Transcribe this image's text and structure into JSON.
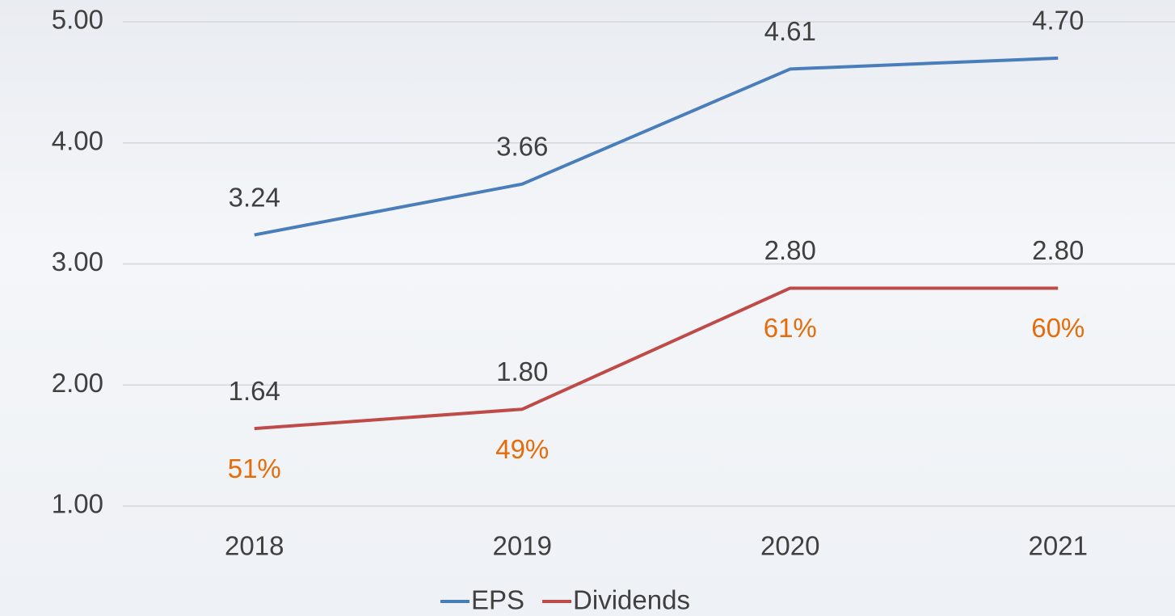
{
  "chart_data": {
    "type": "line",
    "categories": [
      "2018",
      "2019",
      "2020",
      "2021"
    ],
    "series": [
      {
        "name": "EPS",
        "color": "#4a7ebb",
        "values": [
          3.24,
          3.66,
          4.61,
          4.7
        ],
        "value_labels": [
          "3.24",
          "3.66",
          "4.61",
          "4.70"
        ]
      },
      {
        "name": "Dividends",
        "color": "#be4b48",
        "values": [
          1.64,
          1.8,
          2.8,
          2.8
        ],
        "value_labels": [
          "1.64",
          "1.80",
          "2.80",
          "2.80"
        ]
      }
    ],
    "annotations": [
      "51%",
      "49%",
      "61%",
      "60%"
    ],
    "annotation_color": "#e46c0a",
    "ylim": [
      1,
      5
    ],
    "yticks": [
      {
        "value": 1,
        "label": "1.00"
      },
      {
        "value": 2,
        "label": "2.00"
      },
      {
        "value": 3,
        "label": "3.00"
      },
      {
        "value": 4,
        "label": "4.00"
      },
      {
        "value": 5,
        "label": "5.00"
      }
    ],
    "grid": true,
    "legend": "bottom"
  }
}
